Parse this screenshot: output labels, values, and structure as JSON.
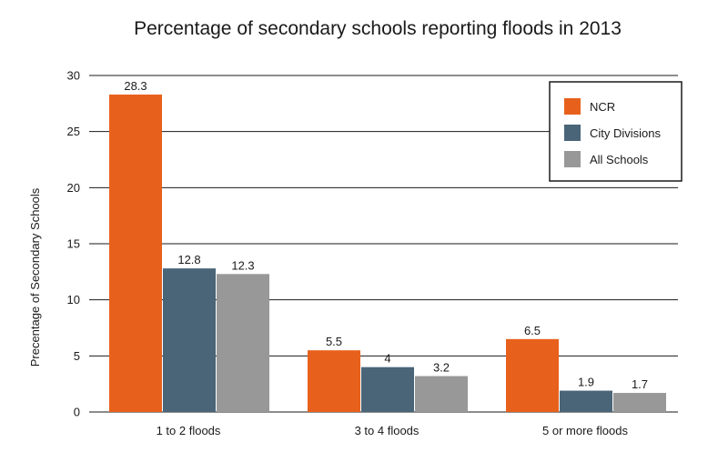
{
  "chart_data": {
    "type": "bar",
    "title": "Percentage of secondary schools reporting floods in 2013",
    "xlabel": "",
    "ylabel": "Precentage of Secondary Schools",
    "ylim": [
      0,
      30
    ],
    "yticks": [
      0,
      5,
      10,
      15,
      20,
      25,
      30
    ],
    "categories": [
      "1 to 2 floods",
      "3 to 4 floods",
      "5 or more floods"
    ],
    "series": [
      {
        "name": "NCR",
        "color": "#E8611C",
        "values": [
          28.3,
          5.5,
          6.5
        ],
        "labels": [
          "28.3",
          "5.5",
          "6.5"
        ]
      },
      {
        "name": "City Divisions",
        "color": "#4A6478",
        "values": [
          12.8,
          4,
          1.9
        ],
        "labels": [
          "12.8",
          "4",
          "1.9"
        ]
      },
      {
        "name": "All Schools",
        "color": "#989898",
        "values": [
          12.3,
          3.2,
          1.7
        ],
        "labels": [
          "12.3",
          "3.2",
          "1.7"
        ]
      }
    ],
    "grid": true,
    "legend_position": "top-right"
  }
}
